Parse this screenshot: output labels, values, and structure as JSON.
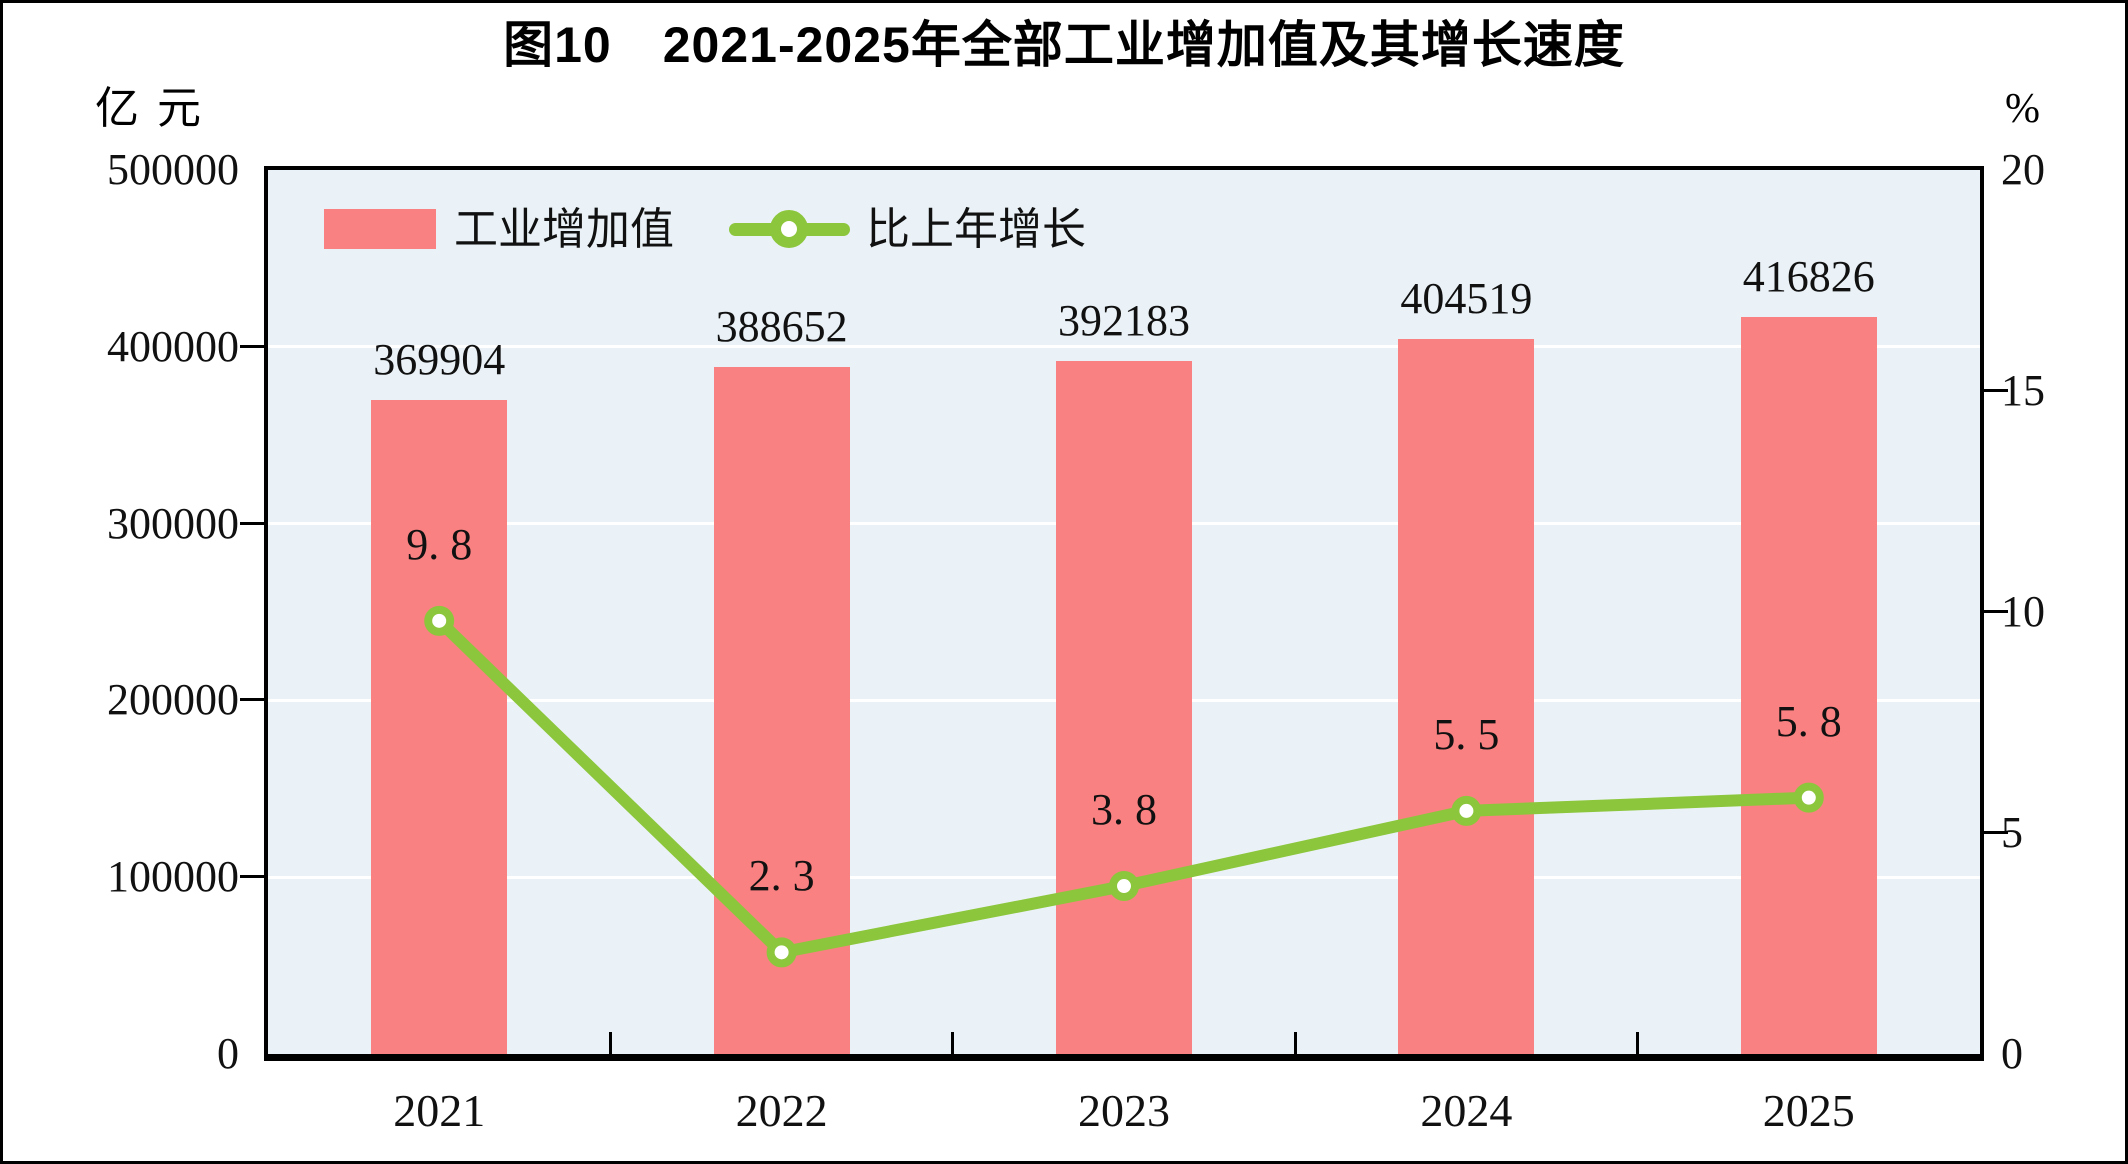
{
  "title": "图10　2021-2025年全部工业增加值及其增长速度",
  "legend": {
    "items": [
      {
        "label": "工业增加值",
        "swatch": "bar"
      },
      {
        "label": "比上年增长",
        "swatch": "line-circle-marker"
      }
    ]
  },
  "chart_data": {
    "type": "bar+line",
    "title": "图10　2021-2025年全部工业增加值及其增长速度",
    "categories": [
      "2021",
      "2022",
      "2023",
      "2024",
      "2025"
    ],
    "series": [
      {
        "name": "工业增加值",
        "type": "bar",
        "axis": "left",
        "color": "#FA8181",
        "values": [
          369904,
          388652,
          392183,
          404519,
          416826
        ],
        "value_labels": [
          "369904",
          "388652",
          "392183",
          "404519",
          "416826"
        ]
      },
      {
        "name": "比上年增长",
        "type": "line",
        "axis": "right",
        "color": "#8CC63C",
        "marker": "circle-white-fill",
        "values": [
          9.8,
          2.3,
          3.8,
          5.5,
          5.8
        ],
        "value_labels": [
          "9. 8",
          "2. 3",
          "3. 8",
          "5. 5",
          "5. 8"
        ]
      }
    ],
    "left_axis": {
      "unit": "亿元",
      "min": 0,
      "max": 500000,
      "step": 100000,
      "tick_labels": [
        "500000",
        "400000",
        "300000",
        "200000",
        "100000",
        "0"
      ]
    },
    "right_axis": {
      "unit": "%",
      "min": 0,
      "max": 20,
      "step": 5,
      "tick_labels": [
        "20",
        "15",
        "10",
        "5",
        "0"
      ]
    },
    "plot_background": "#EAF2F7",
    "gridlines": {
      "horizontal": true,
      "color": "#FFFFFF"
    },
    "legend_position": "top-left-inside"
  }
}
